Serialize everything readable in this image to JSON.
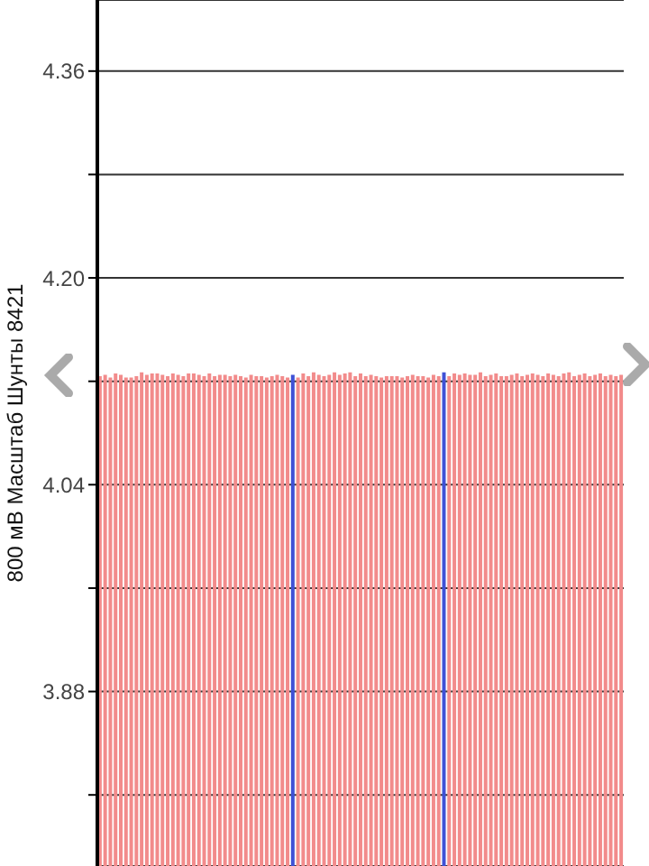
{
  "chart_data": {
    "type": "bar",
    "ylabel": "800 мВ Масштаб  Шунты 8421",
    "categories": [
      null,
      null,
      null,
      null,
      null,
      null,
      null,
      null,
      null,
      null,
      null,
      null,
      null,
      null,
      null,
      null,
      null,
      null,
      null,
      null,
      null,
      null,
      null,
      null,
      null,
      null,
      null,
      null,
      null,
      null,
      null,
      null,
      null,
      null,
      null,
      null,
      null,
      null,
      null,
      null,
      null,
      null,
      null,
      null,
      null,
      null,
      null,
      null,
      null,
      null,
      null,
      null,
      null,
      null,
      null,
      null,
      null,
      null,
      null,
      null,
      null,
      null,
      null,
      null,
      null,
      null,
      null,
      null,
      null,
      null,
      null,
      null,
      null,
      null,
      null,
      null,
      null,
      null,
      null,
      null,
      null,
      null,
      null,
      null,
      null,
      null,
      null,
      null,
      null,
      null,
      null,
      null,
      null,
      null,
      null,
      null,
      null,
      null,
      null,
      null,
      null
    ],
    "values": [
      4.124,
      4.125,
      4.123,
      4.126,
      4.125,
      4.123,
      4.123,
      4.124,
      4.127,
      4.125,
      4.126,
      4.126,
      4.125,
      4.124,
      4.126,
      4.125,
      4.124,
      4.126,
      4.126,
      4.125,
      4.124,
      4.126,
      4.124,
      4.125,
      4.125,
      4.124,
      4.125,
      4.124,
      4.123,
      4.125,
      4.124,
      4.124,
      4.123,
      4.124,
      4.125,
      4.124,
      4.123,
      4.125,
      4.123,
      4.126,
      4.124,
      4.127,
      4.125,
      4.124,
      4.125,
      4.127,
      4.125,
      4.126,
      4.127,
      4.124,
      4.126,
      4.124,
      4.125,
      4.124,
      4.123,
      4.124,
      4.124,
      4.124,
      4.123,
      4.124,
      4.125,
      4.124,
      4.124,
      4.123,
      4.125,
      4.124,
      4.127,
      4.124,
      4.126,
      4.125,
      4.126,
      4.125,
      4.125,
      4.127,
      4.124,
      4.125,
      4.126,
      4.124,
      4.124,
      4.125,
      4.126,
      4.124,
      4.125,
      4.126,
      4.125,
      4.124,
      4.126,
      4.125,
      4.124,
      4.126,
      4.127,
      4.124,
      4.125,
      4.126,
      4.124,
      4.125,
      4.126,
      4.124,
      4.125,
      4.124,
      4.125
    ],
    "colors": [
      "#f28b8b",
      "#f28b8b",
      "#f28b8b",
      "#f28b8b",
      "#f28b8b",
      "#f28b8b",
      "#f28b8b",
      "#f28b8b",
      "#f28b8b",
      "#f28b8b",
      "#f28b8b",
      "#f28b8b",
      "#f28b8b",
      "#f28b8b",
      "#f28b8b",
      "#f28b8b",
      "#f28b8b",
      "#f28b8b",
      "#f28b8b",
      "#f28b8b",
      "#f28b8b",
      "#f28b8b",
      "#f28b8b",
      "#f28b8b",
      "#f28b8b",
      "#f28b8b",
      "#f28b8b",
      "#f28b8b",
      "#f28b8b",
      "#f28b8b",
      "#f28b8b",
      "#f28b8b",
      "#f28b8b",
      "#f28b8b",
      "#f28b8b",
      "#f28b8b",
      "#f28b8b",
      "#3f51d6",
      "#f28b8b",
      "#f28b8b",
      "#f28b8b",
      "#f28b8b",
      "#f28b8b",
      "#f28b8b",
      "#f28b8b",
      "#f28b8b",
      "#f28b8b",
      "#f28b8b",
      "#f28b8b",
      "#f28b8b",
      "#f28b8b",
      "#f28b8b",
      "#f28b8b",
      "#f28b8b",
      "#f28b8b",
      "#f28b8b",
      "#f28b8b",
      "#f28b8b",
      "#f28b8b",
      "#f28b8b",
      "#f28b8b",
      "#f28b8b",
      "#f28b8b",
      "#f28b8b",
      "#f28b8b",
      "#f28b8b",
      "#3f51d6",
      "#f28b8b",
      "#f28b8b",
      "#f28b8b",
      "#f28b8b",
      "#f28b8b",
      "#f28b8b",
      "#f28b8b",
      "#f28b8b",
      "#f28b8b",
      "#f28b8b",
      "#f28b8b",
      "#f28b8b",
      "#f28b8b",
      "#f28b8b",
      "#f28b8b",
      "#f28b8b",
      "#f28b8b",
      "#f28b8b",
      "#f28b8b",
      "#f28b8b",
      "#f28b8b",
      "#f28b8b",
      "#f28b8b",
      "#f28b8b",
      "#f28b8b",
      "#f28b8b",
      "#f28b8b",
      "#f28b8b",
      "#f28b8b",
      "#f28b8b",
      "#f28b8b",
      "#f28b8b",
      "#f28b8b",
      "#f28b8b"
    ],
    "ylim": [
      3.745,
      4.415
    ],
    "yticks": [
      {
        "value": 3.8,
        "label": null
      },
      {
        "value": 3.88,
        "label": "3.88"
      },
      {
        "value": 3.96,
        "label": null
      },
      {
        "value": 4.04,
        "label": "4.04"
      },
      {
        "value": 4.12,
        "label": null
      },
      {
        "value": 4.2,
        "label": "4.20"
      },
      {
        "value": 4.28,
        "label": null
      },
      {
        "value": 4.36,
        "label": "4.36"
      }
    ],
    "grid": "y",
    "tick_labels": "y"
  }
}
